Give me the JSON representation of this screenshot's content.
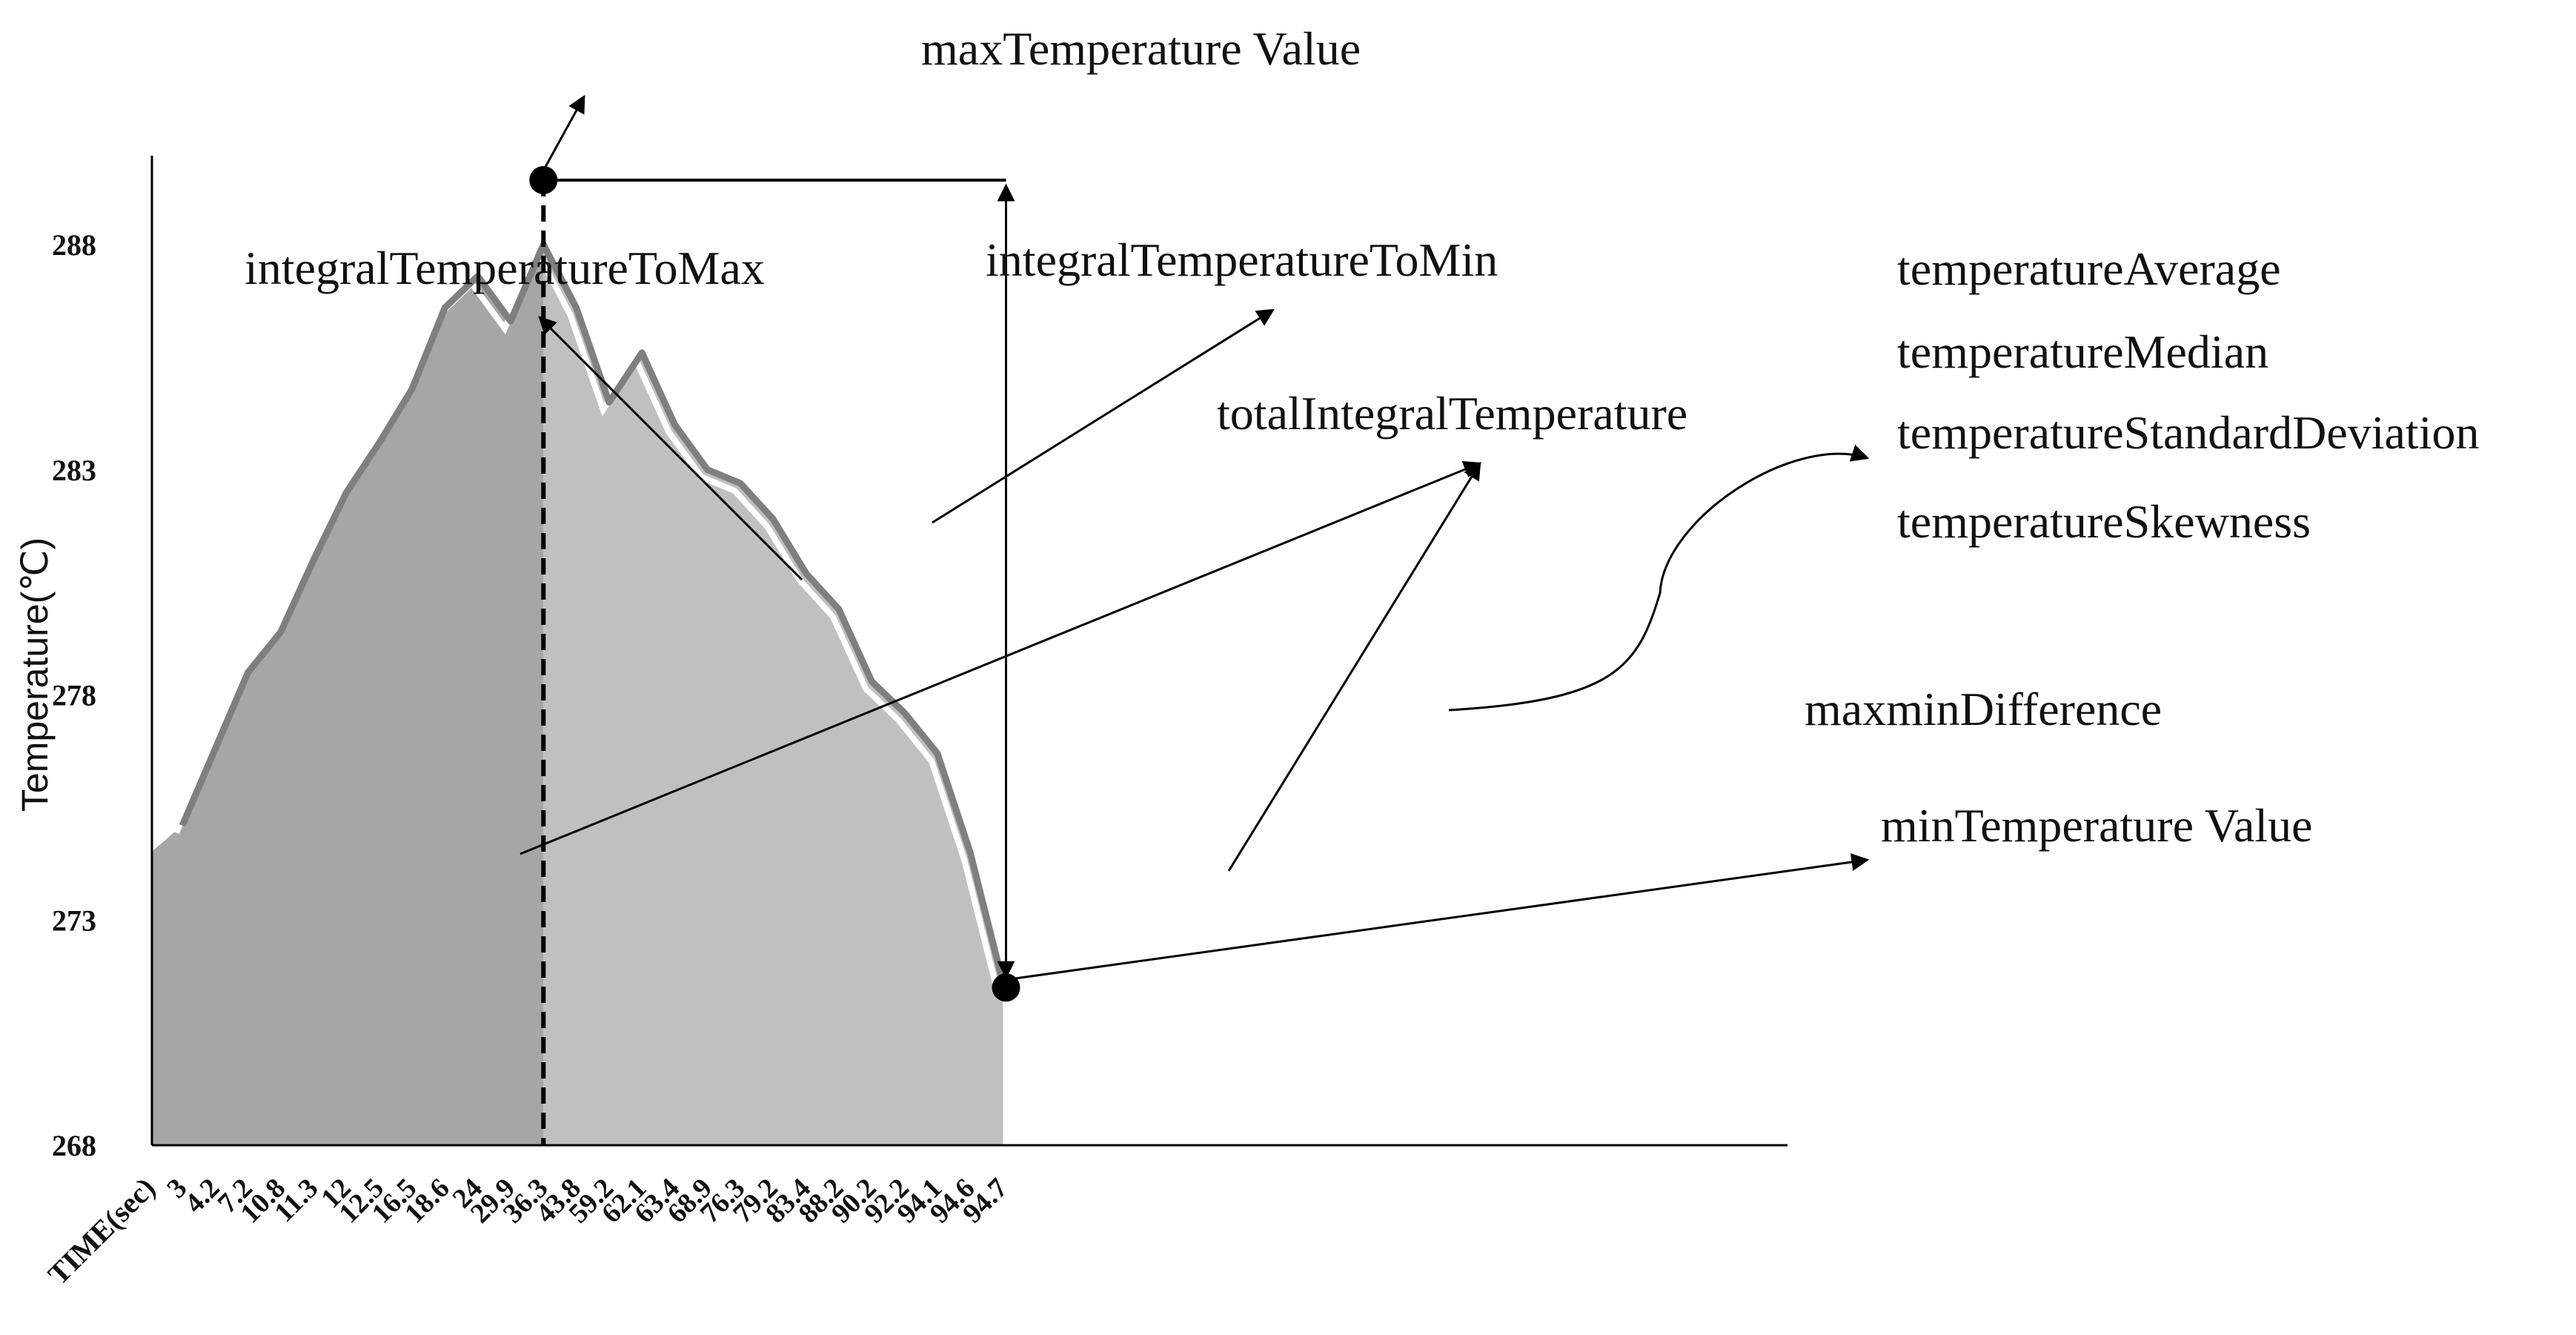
{
  "chart_data": {
    "type": "area",
    "title": "",
    "xlabel": "TIME(sec)",
    "ylabel": "Temperature(℃)",
    "ylim": [
      268,
      290
    ],
    "yticks": [
      268,
      273,
      278,
      283,
      288
    ],
    "categories": [
      "3",
      "4.2",
      "7.2",
      "10.8",
      "11.3",
      "12",
      "12.5",
      "16.5",
      "18.6",
      "24",
      "29.9",
      "36.3",
      "43.8",
      "59.2",
      "62.1",
      "63.4",
      "68.9",
      "76.3",
      "79.2",
      "83.4",
      "88.2",
      "90.2",
      "92.2",
      "94.1",
      "94.6",
      "94.7"
    ],
    "series": [
      {
        "name": "Temperature",
        "values": [
          275.1,
          276.8,
          278.5,
          279.4,
          281.0,
          282.5,
          283.6,
          284.8,
          286.6,
          287.3,
          286.3,
          288.0,
          286.6,
          284.5,
          285.6,
          284.0,
          283.0,
          282.7,
          281.9,
          280.7,
          279.9,
          278.3,
          277.6,
          276.7,
          274.5,
          271.6
        ]
      }
    ],
    "max_index": 11,
    "min_index": 25,
    "annotations": {
      "max_temperature": "maxTemperature Value",
      "min_temperature": "minTemperature Value",
      "integral_to_max": "integralTemperatureToMax",
      "integral_to_min": "integralTemperatureToMin",
      "total_integral": "totalIntegralTemperature",
      "maxmin_difference": "maxminDifference",
      "stats": [
        "temperatureAverage",
        "temperatureMedian",
        "temperatureStandardDeviation",
        "temperatureSkewness"
      ]
    },
    "colors": {
      "fill_to_max": "#a6a6a6",
      "fill_to_min": "#c0c0c0",
      "line": "#7f7f7f",
      "axis": "#000000"
    }
  }
}
